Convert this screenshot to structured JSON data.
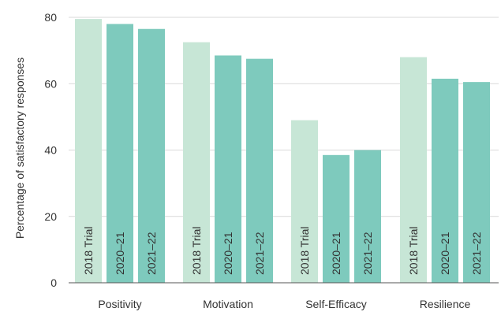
{
  "chart_data": {
    "type": "bar",
    "categories": [
      "Positivity",
      "Motivation",
      "Self-Efficacy",
      "Resilience"
    ],
    "series": [
      {
        "name": "2018 Trial",
        "color": "#c7e6d6",
        "values": [
          79.5,
          72.5,
          49,
          68
        ]
      },
      {
        "name": "2020–21",
        "color": "#7ecabd",
        "values": [
          78,
          68.5,
          38.5,
          61.5
        ]
      },
      {
        "name": "2021–22",
        "color": "#7ecabd",
        "values": [
          76.5,
          67.5,
          40,
          60.5
        ]
      }
    ],
    "title": "",
    "xlabel": "",
    "ylabel": "Percentage of satisfactory responses",
    "ylim": [
      0,
      80
    ],
    "yticks": [
      0,
      20,
      40,
      60,
      80
    ],
    "grid": true,
    "legend": "none (series names printed inside bars)"
  }
}
